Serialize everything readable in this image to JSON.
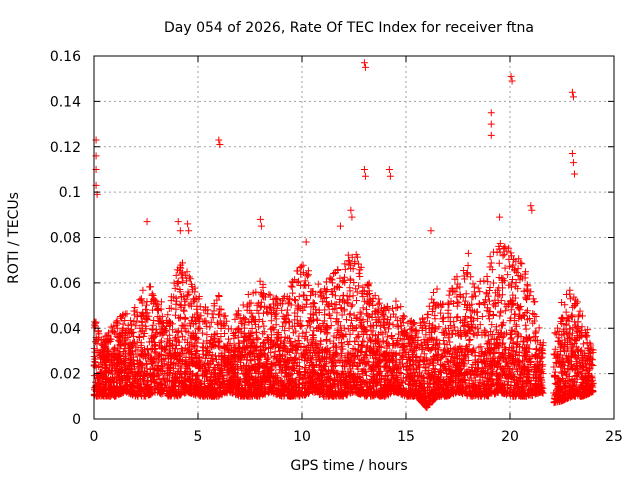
{
  "chart_data": {
    "type": "scatter",
    "title": "Day 054 of 2026, Rate Of TEC Index for receiver ftna",
    "xlabel": "GPS time / hours",
    "ylabel": "ROTI / TECUs",
    "xlim": [
      0,
      25
    ],
    "ylim": [
      0,
      0.16
    ],
    "xticks": [
      0,
      5,
      10,
      15,
      20,
      25
    ],
    "xtick_labels": [
      "0",
      "5",
      "10",
      "15",
      "20",
      "25"
    ],
    "yticks": [
      0,
      0.02,
      0.04,
      0.06,
      0.08,
      0.1,
      0.12,
      0.14,
      0.16
    ],
    "ytick_labels": [
      "0",
      "0.02",
      "0.04",
      "0.06",
      "0.08",
      "0.1",
      "0.12",
      "0.14",
      "0.16"
    ],
    "grid": true,
    "marker": "+",
    "series_color": "#ff0000",
    "notable_points": [
      {
        "x": 0.1,
        "y": 0.123
      },
      {
        "x": 0.1,
        "y": 0.116
      },
      {
        "x": 0.1,
        "y": 0.11
      },
      {
        "x": 0.1,
        "y": 0.103
      },
      {
        "x": 0.15,
        "y": 0.099
      },
      {
        "x": 6.0,
        "y": 0.123
      },
      {
        "x": 6.05,
        "y": 0.121
      },
      {
        "x": 8.0,
        "y": 0.088
      },
      {
        "x": 8.05,
        "y": 0.085
      },
      {
        "x": 12.35,
        "y": 0.092
      },
      {
        "x": 12.4,
        "y": 0.089
      },
      {
        "x": 13.0,
        "y": 0.157
      },
      {
        "x": 13.05,
        "y": 0.155
      },
      {
        "x": 13.0,
        "y": 0.11
      },
      {
        "x": 13.05,
        "y": 0.107
      },
      {
        "x": 14.2,
        "y": 0.11
      },
      {
        "x": 14.25,
        "y": 0.107
      },
      {
        "x": 19.1,
        "y": 0.135
      },
      {
        "x": 19.1,
        "y": 0.13
      },
      {
        "x": 19.1,
        "y": 0.125
      },
      {
        "x": 19.5,
        "y": 0.089
      },
      {
        "x": 20.05,
        "y": 0.151
      },
      {
        "x": 20.1,
        "y": 0.149
      },
      {
        "x": 21.0,
        "y": 0.094
      },
      {
        "x": 21.05,
        "y": 0.092
      },
      {
        "x": 23.0,
        "y": 0.144
      },
      {
        "x": 23.05,
        "y": 0.142
      },
      {
        "x": 23.0,
        "y": 0.117
      },
      {
        "x": 23.05,
        "y": 0.113
      },
      {
        "x": 23.1,
        "y": 0.108
      },
      {
        "x": 2.55,
        "y": 0.087
      },
      {
        "x": 4.05,
        "y": 0.087
      },
      {
        "x": 4.15,
        "y": 0.083
      },
      {
        "x": 4.5,
        "y": 0.086
      },
      {
        "x": 4.55,
        "y": 0.083
      },
      {
        "x": 10.2,
        "y": 0.078
      },
      {
        "x": 11.85,
        "y": 0.085
      },
      {
        "x": 16.2,
        "y": 0.083
      },
      {
        "x": 18.0,
        "y": 0.073
      }
    ],
    "envelope": {
      "x": [
        0,
        0.5,
        1,
        1.5,
        2,
        2.5,
        3,
        3.5,
        4,
        4.5,
        5,
        5.5,
        6,
        6.5,
        7,
        7.5,
        8,
        8.5,
        9,
        9.5,
        10,
        10.5,
        11,
        11.5,
        12,
        12.5,
        13,
        13.5,
        14,
        14.5,
        15,
        15.5,
        16,
        16.5,
        17,
        17.5,
        18,
        18.5,
        19,
        19.5,
        20,
        20.5,
        21,
        21.5,
        22,
        22.5,
        23,
        23.5,
        24
      ],
      "upper": [
        0.045,
        0.038,
        0.042,
        0.048,
        0.05,
        0.062,
        0.058,
        0.045,
        0.068,
        0.07,
        0.055,
        0.048,
        0.055,
        0.04,
        0.05,
        0.058,
        0.062,
        0.055,
        0.052,
        0.06,
        0.072,
        0.062,
        0.06,
        0.065,
        0.072,
        0.075,
        0.065,
        0.055,
        0.05,
        0.055,
        0.045,
        0.042,
        0.052,
        0.058,
        0.055,
        0.065,
        0.068,
        0.062,
        0.072,
        0.078,
        0.075,
        0.07,
        0.062,
        0.035,
        0.035,
        0.052,
        0.06,
        0.045,
        0.035
      ],
      "lower": [
        0.01,
        0.01,
        0.01,
        0.012,
        0.01,
        0.01,
        0.012,
        0.01,
        0.01,
        0.012,
        0.01,
        0.01,
        0.01,
        0.012,
        0.01,
        0.01,
        0.01,
        0.012,
        0.01,
        0.01,
        0.01,
        0.012,
        0.01,
        0.01,
        0.01,
        0.012,
        0.01,
        0.01,
        0.01,
        0.012,
        0.01,
        0.01,
        0.005,
        0.01,
        0.01,
        0.012,
        0.01,
        0.01,
        0.01,
        0.012,
        0.01,
        0.01,
        0.01,
        0.012,
        0.007,
        0.008,
        0.01,
        0.01,
        0.012
      ],
      "gaps": [
        [
          21.6,
          22.1
        ]
      ]
    }
  }
}
